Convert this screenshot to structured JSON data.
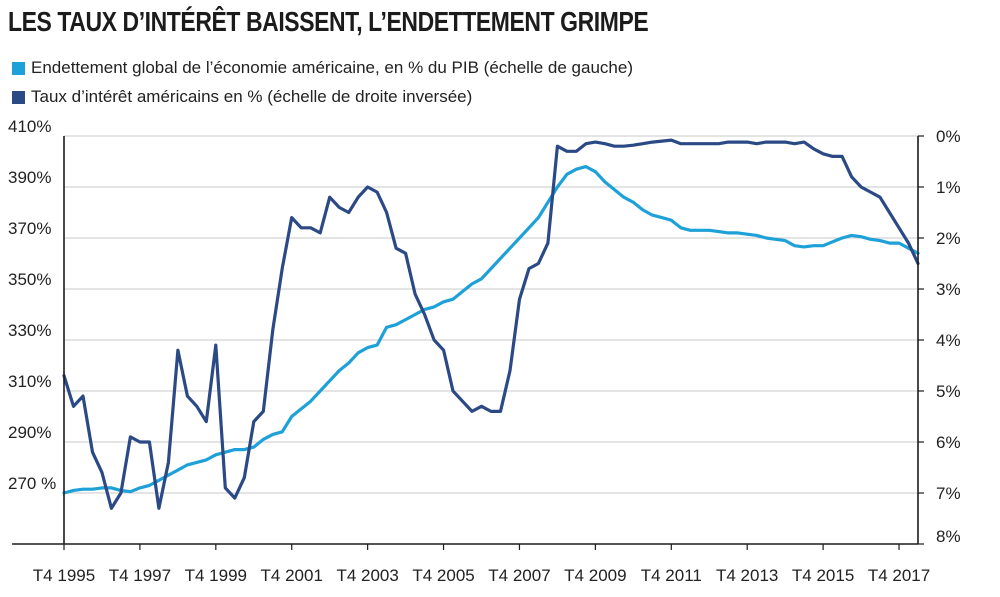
{
  "title": "LES TAUX D’INTÉRÊT BAISSENT, L’ENDETTEMENT GRIMPE",
  "legend": [
    {
      "label": "Endettement global de l’économie américaine, en % du PIB (échelle de gauche)",
      "color": "#1ea1d8"
    },
    {
      "label": "Taux d’intérêt américains en % (échelle de droite inversée)",
      "color": "#2b4a85"
    }
  ],
  "chart_data": {
    "type": "line",
    "x_range": [
      1995.75,
      2018.25
    ],
    "x_tick_labels": [
      "T4 1995",
      "T4 1997",
      "T4 1999",
      "T4 2001",
      "T4 2003",
      "T4 2005",
      "T4 2007",
      "T4 2009",
      "T4 2011",
      "T4 2013",
      "T4 2015",
      "T4 2017"
    ],
    "x_tick_values": [
      1995.75,
      1997.75,
      1999.75,
      2001.75,
      2003.75,
      2005.75,
      2007.75,
      2009.75,
      2011.75,
      2013.75,
      2015.75,
      2017.75
    ],
    "left_axis": {
      "ylim": [
        250,
        410
      ],
      "tick_values": [
        270,
        290,
        310,
        330,
        350,
        370,
        390,
        410
      ],
      "tick_labels": [
        "270 %",
        "290%",
        "310%",
        "330%",
        "350%",
        "370%",
        "390%",
        "410%"
      ]
    },
    "right_axis": {
      "ylim": [
        0,
        8
      ],
      "inverted": true,
      "tick_values": [
        0,
        1,
        2,
        3,
        4,
        5,
        6,
        7,
        8
      ],
      "tick_labels": [
        "0%",
        "1%",
        "2%",
        "3%",
        "4%",
        "5%",
        "6%",
        "7%",
        "8%"
      ]
    },
    "series": [
      {
        "name": "Endettement global de l’économie américaine, en % du PIB (échelle de gauche)",
        "axis": "left",
        "color": "#1ea1d8",
        "points": [
          [
            1995.75,
            270
          ],
          [
            1996.0,
            271
          ],
          [
            1996.25,
            271.5
          ],
          [
            1996.5,
            271.5
          ],
          [
            1996.75,
            272
          ],
          [
            1997.0,
            272
          ],
          [
            1997.25,
            271
          ],
          [
            1997.5,
            270.5
          ],
          [
            1997.75,
            272
          ],
          [
            1998.0,
            273
          ],
          [
            1998.25,
            275
          ],
          [
            1998.5,
            277
          ],
          [
            1998.75,
            279
          ],
          [
            1999.0,
            281
          ],
          [
            1999.25,
            282
          ],
          [
            1999.5,
            283
          ],
          [
            1999.75,
            285
          ],
          [
            2000.0,
            286
          ],
          [
            2000.25,
            287
          ],
          [
            2000.5,
            287
          ],
          [
            2000.75,
            288
          ],
          [
            2001.0,
            291
          ],
          [
            2001.25,
            293
          ],
          [
            2001.5,
            294
          ],
          [
            2001.75,
            300
          ],
          [
            2002.0,
            303
          ],
          [
            2002.25,
            306
          ],
          [
            2002.5,
            310
          ],
          [
            2002.75,
            314
          ],
          [
            2003.0,
            318
          ],
          [
            2003.25,
            321
          ],
          [
            2003.5,
            325
          ],
          [
            2003.75,
            327
          ],
          [
            2004.0,
            328
          ],
          [
            2004.25,
            335
          ],
          [
            2004.5,
            336
          ],
          [
            2004.75,
            338
          ],
          [
            2005.0,
            340
          ],
          [
            2005.25,
            342
          ],
          [
            2005.5,
            343
          ],
          [
            2005.75,
            345
          ],
          [
            2006.0,
            346
          ],
          [
            2006.25,
            349
          ],
          [
            2006.5,
            352
          ],
          [
            2006.75,
            354
          ],
          [
            2007.0,
            358
          ],
          [
            2007.25,
            362
          ],
          [
            2007.5,
            366
          ],
          [
            2007.75,
            370
          ],
          [
            2008.0,
            374
          ],
          [
            2008.25,
            378
          ],
          [
            2008.5,
            384
          ],
          [
            2008.75,
            390
          ],
          [
            2009.0,
            395
          ],
          [
            2009.25,
            397
          ],
          [
            2009.5,
            398
          ],
          [
            2009.75,
            396
          ],
          [
            2010.0,
            392
          ],
          [
            2010.25,
            389
          ],
          [
            2010.5,
            386
          ],
          [
            2010.75,
            384
          ],
          [
            2011.0,
            381
          ],
          [
            2011.25,
            379
          ],
          [
            2011.5,
            378
          ],
          [
            2011.75,
            377
          ],
          [
            2012.0,
            374
          ],
          [
            2012.25,
            373
          ],
          [
            2012.5,
            373
          ],
          [
            2012.75,
            373
          ],
          [
            2013.0,
            372.5
          ],
          [
            2013.25,
            372
          ],
          [
            2013.5,
            372
          ],
          [
            2013.75,
            371.5
          ],
          [
            2014.0,
            371
          ],
          [
            2014.25,
            370
          ],
          [
            2014.5,
            369.5
          ],
          [
            2014.75,
            369
          ],
          [
            2015.0,
            367
          ],
          [
            2015.25,
            366.5
          ],
          [
            2015.5,
            367
          ],
          [
            2015.75,
            367
          ],
          [
            2016.0,
            368.5
          ],
          [
            2016.25,
            370
          ],
          [
            2016.5,
            371
          ],
          [
            2016.75,
            370.5
          ],
          [
            2017.0,
            369.5
          ],
          [
            2017.25,
            369
          ],
          [
            2017.5,
            368
          ],
          [
            2017.75,
            368
          ],
          [
            2018.0,
            366
          ],
          [
            2018.25,
            364
          ]
        ]
      },
      {
        "name": "Taux d’intérêt américains en % (échelle de droite inversée)",
        "axis": "right",
        "color": "#2b4a85",
        "points": [
          [
            1995.75,
            4.7
          ],
          [
            1996.0,
            5.3
          ],
          [
            1996.25,
            5.1
          ],
          [
            1996.5,
            6.2
          ],
          [
            1996.75,
            6.6
          ],
          [
            1997.0,
            7.3
          ],
          [
            1997.25,
            7.0
          ],
          [
            1997.5,
            5.9
          ],
          [
            1997.75,
            6.0
          ],
          [
            1998.0,
            6.0
          ],
          [
            1998.25,
            7.3
          ],
          [
            1998.5,
            6.4
          ],
          [
            1998.75,
            4.2
          ],
          [
            1999.0,
            5.1
          ],
          [
            1999.25,
            5.3
          ],
          [
            1999.5,
            5.6
          ],
          [
            1999.75,
            4.1
          ],
          [
            2000.0,
            6.9
          ],
          [
            2000.25,
            7.1
          ],
          [
            2000.5,
            6.7
          ],
          [
            2000.75,
            5.6
          ],
          [
            2001.0,
            5.4
          ],
          [
            2001.25,
            3.8
          ],
          [
            2001.5,
            2.6
          ],
          [
            2001.75,
            1.6
          ],
          [
            2002.0,
            1.8
          ],
          [
            2002.25,
            1.8
          ],
          [
            2002.5,
            1.9
          ],
          [
            2002.75,
            1.2
          ],
          [
            2003.0,
            1.4
          ],
          [
            2003.25,
            1.5
          ],
          [
            2003.5,
            1.2
          ],
          [
            2003.75,
            1.0
          ],
          [
            2004.0,
            1.1
          ],
          [
            2004.25,
            1.5
          ],
          [
            2004.5,
            2.2
          ],
          [
            2004.75,
            2.3
          ],
          [
            2005.0,
            3.1
          ],
          [
            2005.25,
            3.5
          ],
          [
            2005.5,
            4.0
          ],
          [
            2005.75,
            4.2
          ],
          [
            2006.0,
            5.0
          ],
          [
            2006.25,
            5.2
          ],
          [
            2006.5,
            5.4
          ],
          [
            2006.75,
            5.3
          ],
          [
            2007.0,
            5.4
          ],
          [
            2007.25,
            5.4
          ],
          [
            2007.5,
            4.6
          ],
          [
            2007.75,
            3.2
          ],
          [
            2008.0,
            2.6
          ],
          [
            2008.25,
            2.5
          ],
          [
            2008.5,
            2.1
          ],
          [
            2008.75,
            0.2
          ],
          [
            2009.0,
            0.3
          ],
          [
            2009.25,
            0.3
          ],
          [
            2009.5,
            0.15
          ],
          [
            2009.75,
            0.12
          ],
          [
            2010.0,
            0.15
          ],
          [
            2010.25,
            0.2
          ],
          [
            2010.5,
            0.2
          ],
          [
            2010.75,
            0.18
          ],
          [
            2011.0,
            0.15
          ],
          [
            2011.25,
            0.12
          ],
          [
            2011.5,
            0.1
          ],
          [
            2011.75,
            0.08
          ],
          [
            2012.0,
            0.15
          ],
          [
            2012.25,
            0.15
          ],
          [
            2012.5,
            0.15
          ],
          [
            2012.75,
            0.15
          ],
          [
            2013.0,
            0.15
          ],
          [
            2013.25,
            0.12
          ],
          [
            2013.5,
            0.12
          ],
          [
            2013.75,
            0.12
          ],
          [
            2014.0,
            0.15
          ],
          [
            2014.25,
            0.12
          ],
          [
            2014.5,
            0.12
          ],
          [
            2014.75,
            0.12
          ],
          [
            2015.0,
            0.15
          ],
          [
            2015.25,
            0.12
          ],
          [
            2015.5,
            0.25
          ],
          [
            2015.75,
            0.35
          ],
          [
            2016.0,
            0.4
          ],
          [
            2016.25,
            0.4
          ],
          [
            2016.5,
            0.8
          ],
          [
            2016.75,
            1.0
          ],
          [
            2017.0,
            1.1
          ],
          [
            2017.25,
            1.2
          ],
          [
            2017.5,
            1.5
          ],
          [
            2017.75,
            1.8
          ],
          [
            2018.0,
            2.1
          ],
          [
            2018.25,
            2.5
          ]
        ]
      }
    ]
  }
}
